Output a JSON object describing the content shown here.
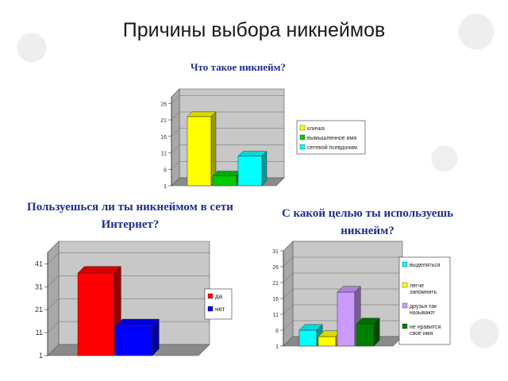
{
  "slide": {
    "title": "Причины выбора никнеймов"
  },
  "chart_data": [
    {
      "type": "bar",
      "title": "Что такое никнейм?",
      "categories": [
        "кличка",
        "вымышленное имя",
        "сетевой псевдоним"
      ],
      "values": [
        22,
        4,
        10
      ],
      "colors": [
        "#ffff00",
        "#00cc00",
        "#00ffff"
      ],
      "yticks": [
        "1",
        "6",
        "11",
        "16",
        "21",
        "26"
      ],
      "ylim": [
        1,
        28
      ],
      "legend_position": "right"
    },
    {
      "type": "bar",
      "title": "Пользуешься ли ты никнеймом в сети Интернет?",
      "categories": [
        "да",
        "нет"
      ],
      "values": [
        37,
        14
      ],
      "colors": [
        "#ff0000",
        "#0000ff"
      ],
      "yticks": [
        "1",
        "11",
        "21",
        "31",
        "41"
      ],
      "ylim": [
        1,
        46
      ],
      "legend_position": "right"
    },
    {
      "type": "bar",
      "title": "С какой целью ты используешь никнейм?",
      "categories": [
        "выделяться",
        "легче запомнить",
        "друзья так называют",
        "не нравится свое имя"
      ],
      "values": [
        6,
        4,
        18,
        8
      ],
      "colors": [
        "#00ffff",
        "#ffff00",
        "#cc99ff",
        "#008000"
      ],
      "yticks": [
        "1",
        "6",
        "11",
        "16",
        "21",
        "26",
        "31"
      ],
      "ylim": [
        1,
        31
      ],
      "legend_position": "right"
    }
  ]
}
